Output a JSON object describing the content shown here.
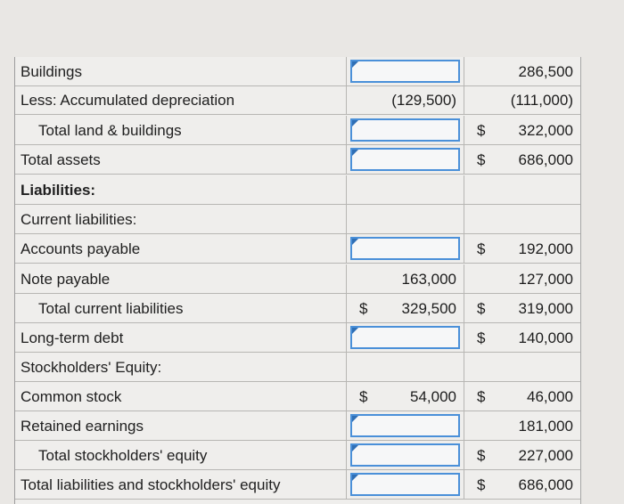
{
  "rows": [
    {
      "label": "Buildings",
      "indent": false,
      "bold": false,
      "c1": {
        "type": "input"
      },
      "c2": {
        "dollar": "",
        "value": "286,500"
      }
    },
    {
      "label": "Less: Accumulated depreciation",
      "indent": false,
      "bold": false,
      "c1": {
        "dollar": "",
        "value": "(129,500)"
      },
      "c2": {
        "dollar": "",
        "value": "(111,000)"
      }
    },
    {
      "label": "Total land & buildings",
      "indent": true,
      "bold": false,
      "c1": {
        "type": "input"
      },
      "c2": {
        "dollar": "$",
        "value": "322,000"
      }
    },
    {
      "label": "Total assets",
      "indent": false,
      "bold": false,
      "c1": {
        "type": "input"
      },
      "c2": {
        "dollar": "$",
        "value": "686,000"
      }
    },
    {
      "label": "Liabilities:",
      "indent": false,
      "bold": true,
      "c1": {
        "dollar": "",
        "value": ""
      },
      "c2": {
        "dollar": "",
        "value": ""
      }
    },
    {
      "label": "Current liabilities:",
      "indent": false,
      "bold": false,
      "c1": {
        "dollar": "",
        "value": ""
      },
      "c2": {
        "dollar": "",
        "value": ""
      }
    },
    {
      "label": "Accounts payable",
      "indent": false,
      "bold": false,
      "c1": {
        "type": "input"
      },
      "c2": {
        "dollar": "$",
        "value": "192,000"
      }
    },
    {
      "label": "Note payable",
      "indent": false,
      "bold": false,
      "c1": {
        "dollar": "",
        "value": "163,000"
      },
      "c2": {
        "dollar": "",
        "value": "127,000"
      }
    },
    {
      "label": "Total current liabilities",
      "indent": true,
      "bold": false,
      "c1": {
        "dollar": "$",
        "value": "329,500"
      },
      "c2": {
        "dollar": "$",
        "value": "319,000"
      }
    },
    {
      "label": "Long-term debt",
      "indent": false,
      "bold": false,
      "c1": {
        "type": "input"
      },
      "c2": {
        "dollar": "$",
        "value": "140,000"
      }
    },
    {
      "label": "Stockholders' Equity:",
      "indent": false,
      "bold": false,
      "c1": {
        "dollar": "",
        "value": ""
      },
      "c2": {
        "dollar": "",
        "value": ""
      }
    },
    {
      "label": "Common stock",
      "indent": false,
      "bold": false,
      "c1": {
        "dollar": "$",
        "value": "54,000"
      },
      "c2": {
        "dollar": "$",
        "value": "46,000"
      }
    },
    {
      "label": "Retained earnings",
      "indent": false,
      "bold": false,
      "c1": {
        "type": "input"
      },
      "c2": {
        "dollar": "",
        "value": "181,000"
      }
    },
    {
      "label": "Total stockholders' equity",
      "indent": true,
      "bold": false,
      "c1": {
        "type": "input"
      },
      "c2": {
        "dollar": "$",
        "value": "227,000"
      }
    },
    {
      "label": "Total liabilities and stockholders' equity",
      "indent": false,
      "bold": false,
      "c1": {
        "type": "input"
      },
      "c2": {
        "dollar": "$",
        "value": "686,000"
      }
    }
  ],
  "colors": {
    "input_border": "#4a90d9",
    "grid": "#b7b6b3",
    "background": "#efeeec"
  }
}
